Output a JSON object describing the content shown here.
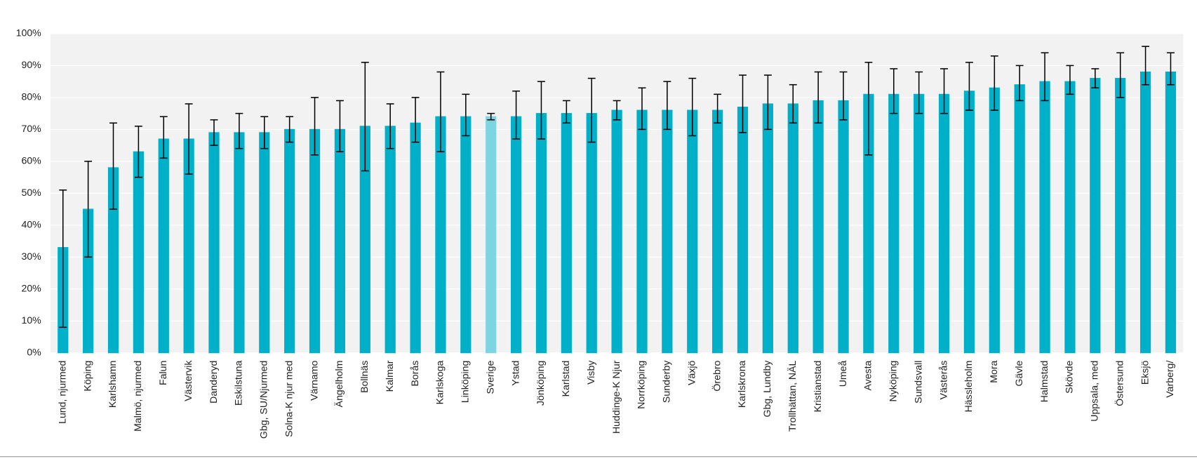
{
  "chart_data": {
    "type": "bar",
    "categories": [
      "Lund, njurmed",
      "Köping",
      "Karlshamn",
      "Malmö, njurmed",
      "Falun",
      "Västervik",
      "Danderyd",
      "Eskilstuna",
      "Gbg, SU/Njurmed",
      "Solna-K njur med",
      "Värnamo",
      "Ängelholm",
      "Bollnäs",
      "Kalmar",
      "Borås",
      "Karlskoga",
      "Linköping",
      "Sverige",
      "Ystad",
      "Jönköping",
      "Karlstad",
      "Visby",
      "Huddinge-K Njur",
      "Norrköping",
      "Sunderby",
      "Växjö",
      "Örebro",
      "Karlskrona",
      "Gbg, Lundby",
      "Trollhättan, NÄL",
      "Kristianstad",
      "Umeå",
      "Avesta",
      "Nyköping",
      "Sundsvall",
      "Västerås",
      "Hässleholm",
      "Mora",
      "Gävle",
      "Halmstad",
      "Skövde",
      "Uppsala, med",
      "Östersund",
      "Eksjö",
      "Varberg/"
    ],
    "values": [
      33,
      45,
      58,
      63,
      67,
      67,
      69,
      69,
      69,
      70,
      70,
      70,
      71,
      71,
      72,
      74,
      74,
      74,
      74,
      75,
      75,
      75,
      76,
      76,
      76,
      76,
      76,
      77,
      78,
      78,
      79,
      79,
      81,
      81,
      81,
      81,
      82,
      83,
      84,
      85,
      85,
      86,
      86,
      88,
      88
    ],
    "lower": [
      8,
      30,
      45,
      55,
      61,
      56,
      65,
      64,
      64,
      66,
      62,
      63,
      57,
      64,
      66,
      63,
      68,
      73,
      67,
      67,
      72,
      66,
      73,
      70,
      70,
      68,
      72,
      69,
      70,
      72,
      72,
      73,
      62,
      75,
      75,
      75,
      76,
      76,
      79,
      79,
      81,
      83,
      80,
      84,
      84
    ],
    "upper": [
      51,
      60,
      72,
      71,
      74,
      78,
      73,
      75,
      74,
      74,
      80,
      79,
      91,
      78,
      80,
      88,
      81,
      75,
      82,
      85,
      79,
      86,
      79,
      83,
      85,
      86,
      81,
      87,
      87,
      84,
      88,
      88,
      91,
      89,
      88,
      89,
      91,
      93,
      90,
      94,
      90,
      89,
      94,
      96,
      94
    ],
    "colors": [
      "#00afc8",
      "#00afc8",
      "#00afc8",
      "#00afc8",
      "#00afc8",
      "#00afc8",
      "#00afc8",
      "#00afc8",
      "#00afc8",
      "#00afc8",
      "#00afc8",
      "#00afc8",
      "#00afc8",
      "#00afc8",
      "#00afc8",
      "#00afc8",
      "#00afc8",
      "#7fd4e2",
      "#00afc8",
      "#00afc8",
      "#00afc8",
      "#00afc8",
      "#00afc8",
      "#00afc8",
      "#00afc8",
      "#00afc8",
      "#00afc8",
      "#00afc8",
      "#00afc8",
      "#00afc8",
      "#00afc8",
      "#00afc8",
      "#00afc8",
      "#00afc8",
      "#00afc8",
      "#00afc8",
      "#00afc8",
      "#00afc8",
      "#00afc8",
      "#00afc8",
      "#00afc8",
      "#00afc8",
      "#00afc8",
      "#00afc8",
      "#00afc8"
    ],
    "ylim": [
      0,
      100
    ],
    "yticks": [
      {
        "value": 0,
        "label": "0%"
      },
      {
        "value": 10,
        "label": "10%"
      },
      {
        "value": 20,
        "label": "20%"
      },
      {
        "value": 30,
        "label": "30%"
      },
      {
        "value": 40,
        "label": "40%"
      },
      {
        "value": 50,
        "label": "50%"
      },
      {
        "value": 60,
        "label": "60%"
      },
      {
        "value": 70,
        "label": "70%"
      },
      {
        "value": 80,
        "label": "80%"
      },
      {
        "value": 90,
        "label": "90%"
      },
      {
        "value": 100,
        "label": "100%"
      }
    ],
    "grid": true
  }
}
